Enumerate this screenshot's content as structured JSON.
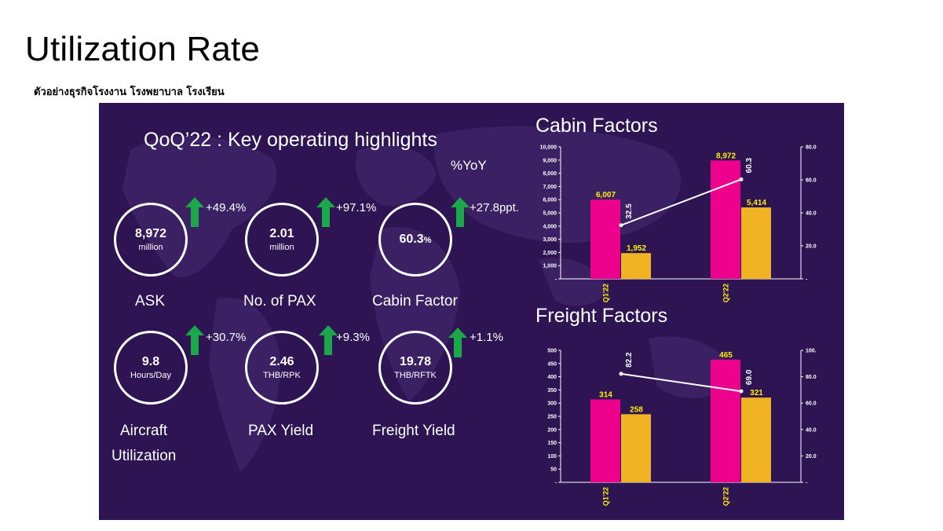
{
  "page": {
    "title": "Utilization Rate",
    "subtitle": "ตัวอย่างธุรกิจโรงงาน โรงพยาบาล โรงเรียน"
  },
  "highlights": {
    "title": "QoQ’22 : Key operating highlights",
    "yoy_label": "%YoY",
    "metrics": [
      {
        "value": "8,972",
        "unit": "million",
        "label": "ASK",
        "change": "+49.4%"
      },
      {
        "value": "2.01",
        "unit": "million",
        "label": "No. of PAX",
        "change": "+97.1%"
      },
      {
        "value": "60.3",
        "unit_inline": "%",
        "label": "Cabin Factor",
        "change": "+27.8ppt."
      },
      {
        "value": "9.8",
        "unit": "Hours/Day",
        "label_lines": [
          "Aircraft",
          "Utilization"
        ],
        "change": "+30.7%"
      },
      {
        "value": "2.46",
        "unit": "THB/RPK",
        "label": "PAX Yield",
        "change": "+9.3%"
      },
      {
        "value": "19.78",
        "unit": "THB/RFTK",
        "label": "Freight Yield",
        "change": "+1.1%"
      }
    ]
  },
  "colors": {
    "panel": "#2e1453",
    "bar_primary": "#ec008c",
    "bar_secondary": "#f0b323",
    "arrow": "#1aa84a",
    "value_label": "#fff200"
  },
  "chart_data": [
    {
      "type": "bar",
      "title": "Cabin Factors",
      "categories": [
        "Q1'22",
        "Q2'22"
      ],
      "series": [
        {
          "values": [
            6007,
            8972
          ],
          "labels": [
            "6,007",
            "8,972"
          ]
        },
        {
          "values": [
            1952,
            5414
          ],
          "labels": [
            "1,952",
            "5,414"
          ]
        }
      ],
      "line_series": {
        "values": [
          32.5,
          60.3
        ],
        "labels": [
          "32.5",
          "60.3"
        ]
      },
      "ylim": [
        0,
        10000
      ],
      "y_ticks": [
        "-",
        "1,000",
        "2,000",
        "3,000",
        "4,000",
        "5,000",
        "6,000",
        "7,000",
        "8,000",
        "9,000",
        "10,000"
      ],
      "y2lim": [
        0,
        80
      ],
      "y2_ticks": [
        "-",
        "20.0",
        "40.0",
        "60.0",
        "80.0"
      ]
    },
    {
      "type": "bar",
      "title": "Freight Factors",
      "categories": [
        "Q1'22",
        "Q2'22"
      ],
      "series": [
        {
          "values": [
            314,
            465
          ],
          "labels": [
            "314",
            "465"
          ]
        },
        {
          "values": [
            258,
            321
          ],
          "labels": [
            "258",
            "321"
          ]
        }
      ],
      "line_series": {
        "values": [
          82.2,
          69.0
        ],
        "labels": [
          "82.2",
          "69.0"
        ]
      },
      "ylim": [
        0,
        500
      ],
      "y_ticks": [
        "-",
        "50",
        "100",
        "150",
        "200",
        "250",
        "300",
        "350",
        "400",
        "450",
        "500"
      ],
      "y2lim": [
        0,
        100
      ],
      "y2_ticks": [
        "-",
        "20.0",
        "40.0",
        "60.0",
        "80.0",
        "100."
      ]
    }
  ]
}
